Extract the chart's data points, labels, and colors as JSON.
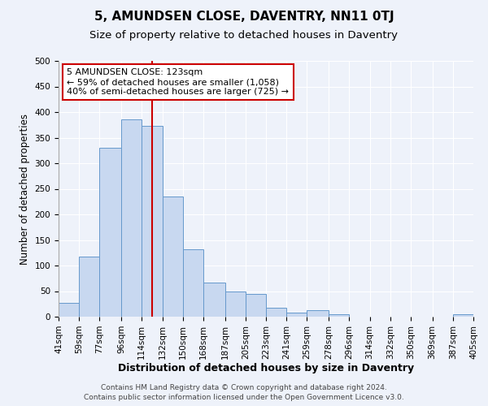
{
  "title": "5, AMUNDSEN CLOSE, DAVENTRY, NN11 0TJ",
  "subtitle": "Size of property relative to detached houses in Daventry",
  "xlabel": "Distribution of detached houses by size in Daventry",
  "ylabel": "Number of detached properties",
  "bar_edges": [
    41,
    59,
    77,
    96,
    114,
    132,
    150,
    168,
    187,
    205,
    223,
    241,
    259,
    278,
    296,
    314,
    332,
    350,
    369,
    387,
    405
  ],
  "bar_heights": [
    27,
    117,
    330,
    385,
    373,
    235,
    132,
    67,
    50,
    45,
    18,
    8,
    12,
    5,
    0,
    0,
    0,
    0,
    0,
    5
  ],
  "bar_color": "#c8d8f0",
  "bar_edge_color": "#6699cc",
  "reference_line_x": 123,
  "reference_line_color": "#cc0000",
  "ylim": [
    0,
    500
  ],
  "yticks": [
    0,
    50,
    100,
    150,
    200,
    250,
    300,
    350,
    400,
    450,
    500
  ],
  "background_color": "#eef2fa",
  "grid_color": "#ffffff",
  "annotation_title": "5 AMUNDSEN CLOSE: 123sqm",
  "annotation_line1": "← 59% of detached houses are smaller (1,058)",
  "annotation_line2": "40% of semi-detached houses are larger (725) →",
  "annotation_box_color": "#ffffff",
  "annotation_box_edge": "#cc0000",
  "footer_line1": "Contains HM Land Registry data © Crown copyright and database right 2024.",
  "footer_line2": "Contains public sector information licensed under the Open Government Licence v3.0.",
  "title_fontsize": 11,
  "subtitle_fontsize": 9.5,
  "xlabel_fontsize": 9,
  "ylabel_fontsize": 8.5,
  "tick_fontsize": 7.5,
  "annot_fontsize": 8,
  "footer_fontsize": 6.5,
  "tick_labels": [
    "41sqm",
    "59sqm",
    "77sqm",
    "96sqm",
    "114sqm",
    "132sqm",
    "150sqm",
    "168sqm",
    "187sqm",
    "205sqm",
    "223sqm",
    "241sqm",
    "259sqm",
    "278sqm",
    "296sqm",
    "314sqm",
    "332sqm",
    "350sqm",
    "369sqm",
    "387sqm",
    "405sqm"
  ]
}
